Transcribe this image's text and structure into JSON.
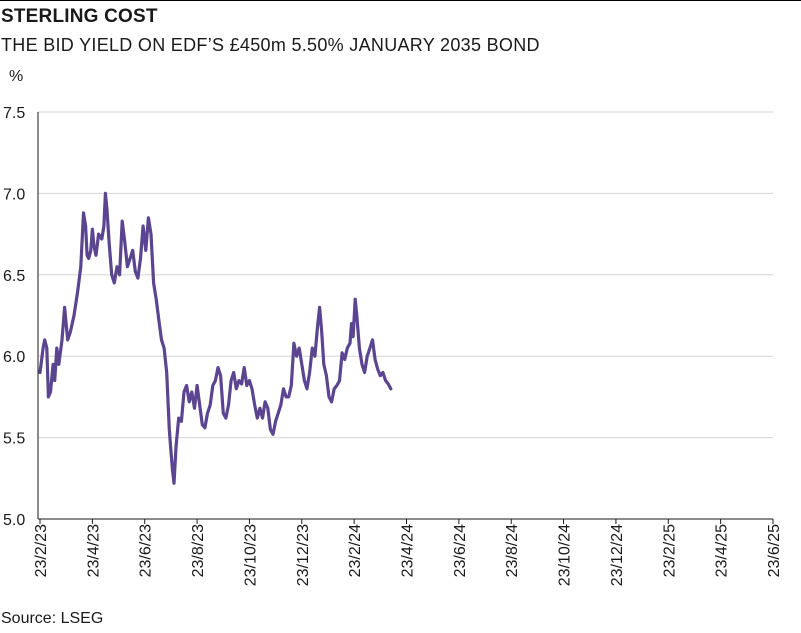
{
  "chart_data": {
    "type": "line",
    "title": "STERLING COST",
    "subtitle": "THE BID YIELD ON EDF’S £450m 5.50% JANUARY 2035 BOND",
    "ylabel": "%",
    "xlabel": "",
    "ylim": [
      5.0,
      7.5
    ],
    "yticks": [
      {
        "value": 5.0,
        "label": "5.0"
      },
      {
        "value": 5.5,
        "label": "5.5"
      },
      {
        "value": 6.0,
        "label": "6.0"
      },
      {
        "value": 6.5,
        "label": "6.5"
      },
      {
        "value": 7.0,
        "label": "7.0"
      },
      {
        "value": 7.5,
        "label": "7.5"
      }
    ],
    "xticks": [
      "23/2/23",
      "23/4/23",
      "23/6/23",
      "23/8/23",
      "23/10/23",
      "23/12/23",
      "23/2/24",
      "23/4/24",
      "23/6/24",
      "23/8/24",
      "23/10/24",
      "23/12/24",
      "23/2/25",
      "23/4/25",
      "23/6/25"
    ],
    "source": "Source: LSEG",
    "line_color": "#5b4490",
    "series": [
      {
        "name": "Bid yield",
        "points": [
          [
            0,
            5.9
          ],
          [
            0.06,
            6.05
          ],
          [
            0.09,
            6.1
          ],
          [
            0.13,
            6.05
          ],
          [
            0.16,
            5.75
          ],
          [
            0.2,
            5.78
          ],
          [
            0.25,
            5.95
          ],
          [
            0.28,
            5.85
          ],
          [
            0.32,
            6.05
          ],
          [
            0.36,
            5.95
          ],
          [
            0.42,
            6.1
          ],
          [
            0.47,
            6.3
          ],
          [
            0.53,
            6.1
          ],
          [
            0.58,
            6.15
          ],
          [
            0.65,
            6.25
          ],
          [
            0.72,
            6.4
          ],
          [
            0.78,
            6.55
          ],
          [
            0.83,
            6.88
          ],
          [
            0.87,
            6.8
          ],
          [
            0.9,
            6.62
          ],
          [
            0.93,
            6.6
          ],
          [
            0.97,
            6.65
          ],
          [
            1.0,
            6.78
          ],
          [
            1.03,
            6.68
          ],
          [
            1.07,
            6.62
          ],
          [
            1.12,
            6.75
          ],
          [
            1.18,
            6.72
          ],
          [
            1.22,
            6.8
          ],
          [
            1.25,
            7.0
          ],
          [
            1.28,
            6.9
          ],
          [
            1.32,
            6.7
          ],
          [
            1.37,
            6.5
          ],
          [
            1.42,
            6.45
          ],
          [
            1.47,
            6.55
          ],
          [
            1.52,
            6.5
          ],
          [
            1.57,
            6.83
          ],
          [
            1.62,
            6.7
          ],
          [
            1.67,
            6.55
          ],
          [
            1.72,
            6.6
          ],
          [
            1.77,
            6.65
          ],
          [
            1.82,
            6.52
          ],
          [
            1.87,
            6.48
          ],
          [
            1.92,
            6.6
          ],
          [
            1.97,
            6.8
          ],
          [
            2.02,
            6.65
          ],
          [
            2.07,
            6.85
          ],
          [
            2.12,
            6.75
          ],
          [
            2.17,
            6.45
          ],
          [
            2.22,
            6.35
          ],
          [
            2.27,
            6.22
          ],
          [
            2.32,
            6.1
          ],
          [
            2.37,
            6.05
          ],
          [
            2.42,
            5.9
          ],
          [
            2.47,
            5.55
          ],
          [
            2.5,
            5.42
          ],
          [
            2.53,
            5.3
          ],
          [
            2.56,
            5.22
          ],
          [
            2.6,
            5.45
          ],
          [
            2.65,
            5.62
          ],
          [
            2.7,
            5.6
          ],
          [
            2.75,
            5.78
          ],
          [
            2.8,
            5.82
          ],
          [
            2.85,
            5.72
          ],
          [
            2.9,
            5.78
          ],
          [
            2.95,
            5.68
          ],
          [
            3.0,
            5.82
          ],
          [
            3.05,
            5.7
          ],
          [
            3.1,
            5.58
          ],
          [
            3.15,
            5.56
          ],
          [
            3.2,
            5.65
          ],
          [
            3.25,
            5.7
          ],
          [
            3.3,
            5.82
          ],
          [
            3.35,
            5.85
          ],
          [
            3.4,
            5.93
          ],
          [
            3.45,
            5.88
          ],
          [
            3.5,
            5.65
          ],
          [
            3.55,
            5.62
          ],
          [
            3.6,
            5.7
          ],
          [
            3.65,
            5.85
          ],
          [
            3.7,
            5.9
          ],
          [
            3.75,
            5.8
          ],
          [
            3.8,
            5.85
          ],
          [
            3.85,
            5.83
          ],
          [
            3.9,
            5.93
          ],
          [
            3.95,
            5.82
          ],
          [
            4.0,
            5.85
          ],
          [
            4.05,
            5.8
          ],
          [
            4.1,
            5.7
          ],
          [
            4.15,
            5.62
          ],
          [
            4.2,
            5.68
          ],
          [
            4.25,
            5.62
          ],
          [
            4.3,
            5.72
          ],
          [
            4.35,
            5.68
          ],
          [
            4.4,
            5.55
          ],
          [
            4.45,
            5.52
          ],
          [
            4.5,
            5.6
          ],
          [
            4.55,
            5.65
          ],
          [
            4.6,
            5.7
          ],
          [
            4.65,
            5.8
          ],
          [
            4.7,
            5.75
          ],
          [
            4.75,
            5.75
          ],
          [
            4.8,
            5.82
          ],
          [
            4.85,
            6.08
          ],
          [
            4.9,
            6.0
          ],
          [
            4.95,
            6.05
          ],
          [
            5.0,
            5.95
          ],
          [
            5.05,
            5.85
          ],
          [
            5.1,
            5.8
          ],
          [
            5.15,
            5.9
          ],
          [
            5.2,
            6.05
          ],
          [
            5.25,
            6.0
          ],
          [
            5.3,
            6.18
          ],
          [
            5.34,
            6.3
          ],
          [
            5.38,
            6.15
          ],
          [
            5.42,
            5.95
          ],
          [
            5.47,
            5.88
          ],
          [
            5.52,
            5.75
          ],
          [
            5.57,
            5.72
          ],
          [
            5.62,
            5.8
          ],
          [
            5.67,
            5.82
          ],
          [
            5.72,
            5.85
          ],
          [
            5.77,
            6.02
          ],
          [
            5.82,
            5.98
          ],
          [
            5.87,
            6.05
          ],
          [
            5.92,
            6.08
          ],
          [
            5.95,
            6.2
          ],
          [
            5.98,
            6.12
          ],
          [
            6.02,
            6.35
          ],
          [
            6.05,
            6.25
          ],
          [
            6.1,
            6.05
          ],
          [
            6.15,
            5.95
          ],
          [
            6.2,
            5.9
          ],
          [
            6.25,
            6.0
          ],
          [
            6.3,
            6.05
          ],
          [
            6.35,
            6.1
          ],
          [
            6.4,
            5.98
          ],
          [
            6.45,
            5.92
          ],
          [
            6.5,
            5.88
          ],
          [
            6.55,
            5.9
          ],
          [
            6.6,
            5.85
          ],
          [
            6.65,
            5.83
          ],
          [
            6.7,
            5.8
          ]
        ]
      }
    ]
  }
}
